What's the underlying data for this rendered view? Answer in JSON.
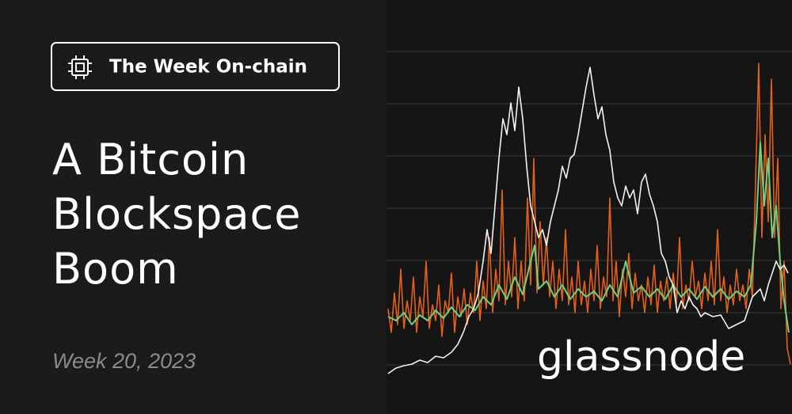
{
  "badge": {
    "label": "The Week On-chain"
  },
  "title": {
    "lines": [
      "A Bitcoin",
      "Blockspace",
      "Boom"
    ]
  },
  "subtitle": "Week 20, 2023",
  "brand": "glassnode"
}
